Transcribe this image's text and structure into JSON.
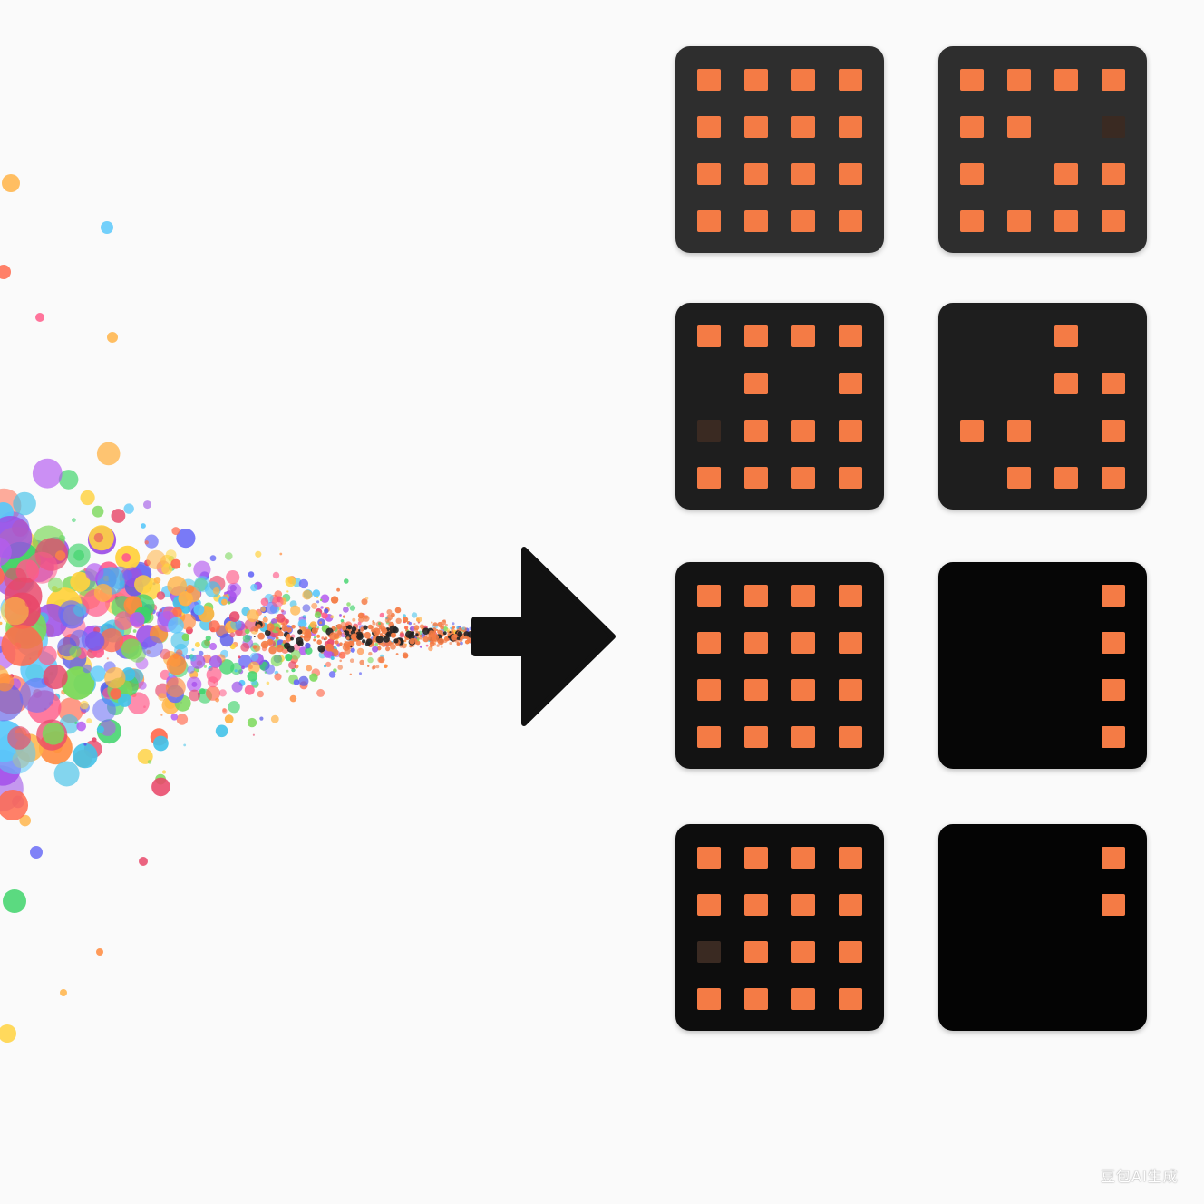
{
  "colors": {
    "background": "#fafafa",
    "cell_on": "#f47b45",
    "cell_dim": "#3a2a22",
    "arrow": "#111111"
  },
  "particles": {
    "palette": [
      "#ff6a4d",
      "#ff8a3d",
      "#ffb347",
      "#ffd23f",
      "#7bd85a",
      "#3ed36a",
      "#5ac8fa",
      "#44c2e8",
      "#6a6cf6",
      "#5b5be8",
      "#b45cf0",
      "#9b4de6",
      "#ff5c8a",
      "#e8486a"
    ]
  },
  "arrow": {
    "icon": "arrow-right-icon"
  },
  "grid": {
    "rows": 4,
    "cols": 2,
    "cell_rows": 4,
    "cell_cols": 4,
    "panels": [
      {
        "bg": "#2e2e2e",
        "cells": [
          "1111",
          "1111",
          "1111",
          "1111"
        ]
      },
      {
        "bg": "#2e2e2e",
        "cells": [
          "1111",
          "110d",
          "1011",
          "1111"
        ]
      },
      {
        "bg": "#1e1e1e",
        "cells": [
          "1111",
          "0101",
          "d111",
          "1111"
        ]
      },
      {
        "bg": "#1e1e1e",
        "cells": [
          "0010",
          "0011",
          "1101",
          "0111"
        ]
      },
      {
        "bg": "#131313",
        "cells": [
          "1111",
          "1111",
          "1111",
          "1111"
        ]
      },
      {
        "bg": "#060606",
        "cells": [
          "0001",
          "0001",
          "0001",
          "0001"
        ]
      },
      {
        "bg": "#0d0d0d",
        "cells": [
          "1111",
          "1111",
          "d111",
          "1111"
        ]
      },
      {
        "bg": "#040404",
        "cells": [
          "0001",
          "0001",
          "0000",
          "0000"
        ]
      }
    ]
  },
  "watermark": {
    "text": "豆包AI生成"
  }
}
